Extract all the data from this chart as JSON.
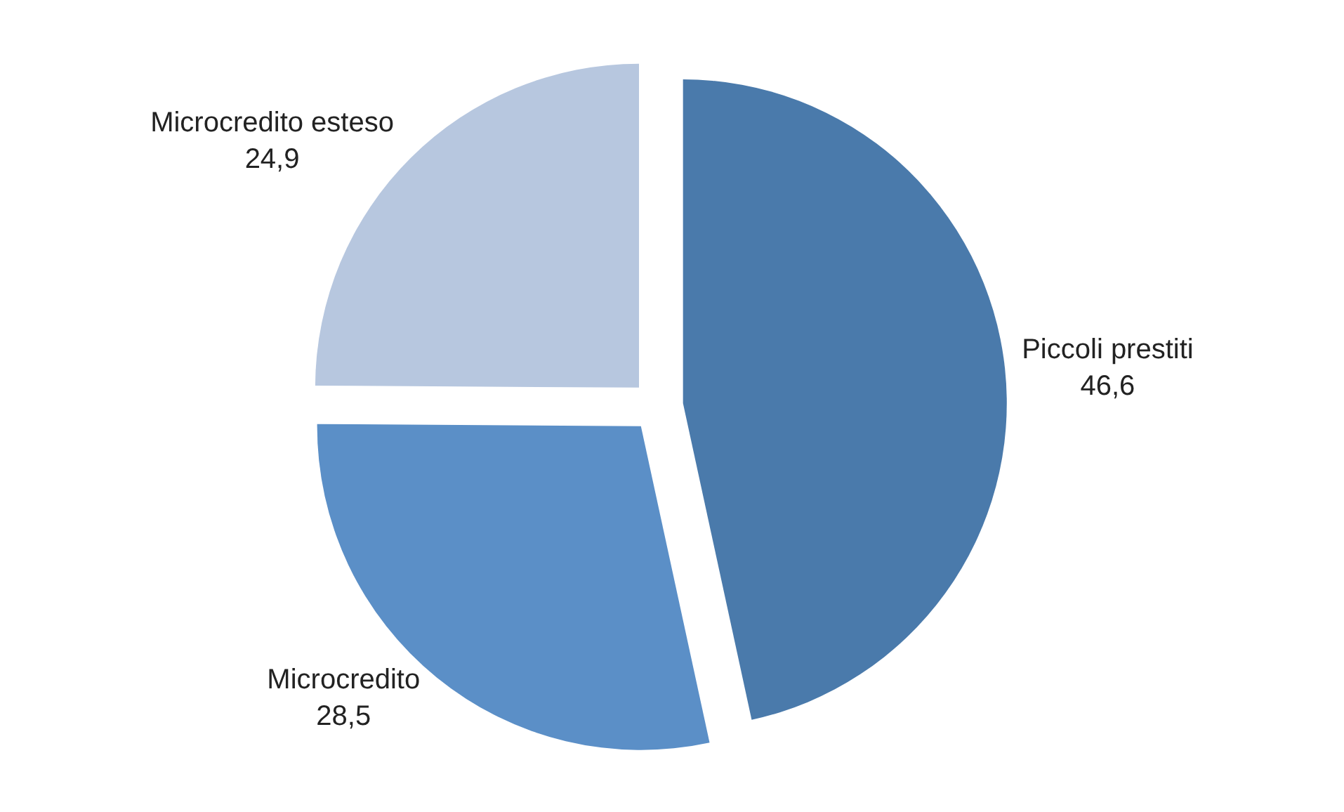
{
  "chart_data": {
    "type": "pie",
    "categories": [
      "Piccoli prestiti",
      "Microcredito",
      "Microcredito esteso"
    ],
    "values": [
      46.6,
      28.5,
      24.9
    ],
    "value_labels": [
      "46,6",
      "28,5",
      "24,9"
    ],
    "colors": [
      "#4a7aab",
      "#5b8fc7",
      "#b7c7df"
    ],
    "legend": false
  }
}
